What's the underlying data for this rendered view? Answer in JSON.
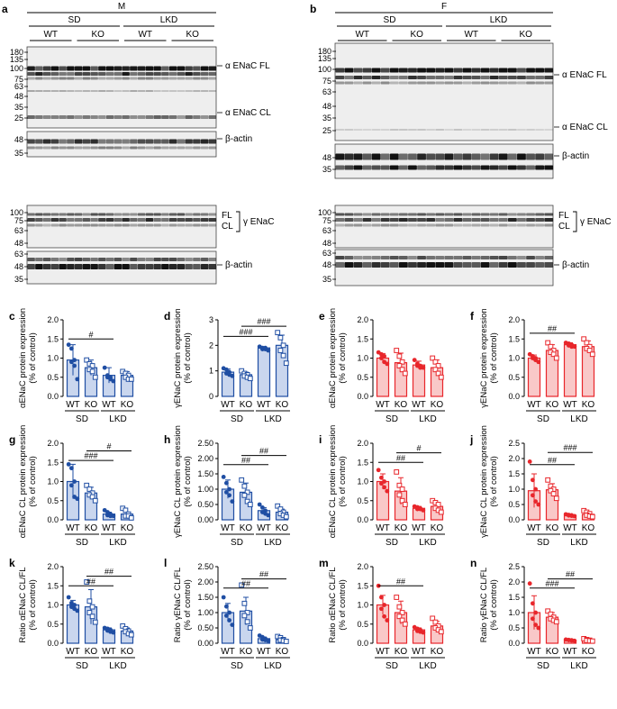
{
  "figure": {
    "panels": {
      "a": {
        "letter": "a",
        "sex": "M",
        "groups": [
          "SD",
          "LKD"
        ],
        "genotypes": [
          "WT",
          "KO",
          "WT",
          "KO"
        ],
        "markers_top": [
          "180",
          "135",
          "100",
          "75",
          "63",
          "48",
          "35",
          "25"
        ],
        "markers_actin_top": [
          "48",
          "35"
        ],
        "labels_top": [
          "α ENaC FL",
          "α ENaC CL",
          "β-actin"
        ],
        "markers_bottom": [
          "100",
          "75",
          "63",
          "48"
        ],
        "markers_actin_bottom": [
          "63",
          "48",
          "35"
        ],
        "labels_bottom": {
          "fl": "FL",
          "cl": "CL",
          "protein": "γ ENaC",
          "actin": "β-actin"
        }
      },
      "b": {
        "letter": "b",
        "sex": "F",
        "groups": [
          "SD",
          "LKD"
        ],
        "genotypes": [
          "WT",
          "KO",
          "WT",
          "KO"
        ],
        "markers_top": [
          "180",
          "135",
          "100",
          "75",
          "63",
          "48",
          "35",
          "25"
        ],
        "markers_actin_top": [
          "48",
          "35"
        ],
        "labels_top": [
          "α ENaC FL",
          "α ENaC CL",
          "β-actin"
        ],
        "markers_bottom": [
          "100",
          "75",
          "63",
          "48"
        ],
        "markers_actin_bottom": [
          "63",
          "48",
          "35"
        ],
        "labels_bottom": {
          "fl": "FL",
          "cl": "CL",
          "protein": "γ ENaC",
          "actin": "β-actin"
        }
      }
    }
  },
  "colors": {
    "male": "#1f4ea3",
    "female": "#e8262b",
    "male_fill": "#c9d6ee",
    "female_fill": "#f9c8c8"
  },
  "chart_data": [
    {
      "id": "c",
      "type": "bar",
      "sex": "M",
      "ylabel": "αENaC protein expression\n(% of control)",
      "ylim": [
        0,
        2.0
      ],
      "yticks": [
        "0.0",
        "0.5",
        "1.0",
        "1.5",
        "2.0"
      ],
      "categories": [
        "WT",
        "KO",
        "WT",
        "KO"
      ],
      "groups": [
        "SD",
        "LKD"
      ],
      "values": [
        0.95,
        0.75,
        0.55,
        0.55
      ],
      "errors": [
        0.4,
        0.2,
        0.2,
        0.1
      ],
      "points": [
        [
          1.35,
          1.25,
          0.95,
          0.9,
          0.8,
          0.45
        ],
        [
          0.95,
          0.85,
          0.8,
          0.7,
          0.65,
          0.5
        ],
        [
          0.75,
          0.55,
          0.5,
          0.5,
          0.45,
          0.4
        ],
        [
          0.65,
          0.6,
          0.55,
          0.5,
          0.45,
          0.45
        ]
      ],
      "sig": [
        {
          "label": "#",
          "from": 0,
          "to": 2,
          "y": 1.5
        }
      ]
    },
    {
      "id": "d",
      "type": "bar",
      "sex": "M",
      "ylabel": "γENaC protein expression\n(% of control)",
      "ylim": [
        0,
        3
      ],
      "yticks": [
        "0",
        "1",
        "2",
        "3"
      ],
      "categories": [
        "WT",
        "KO",
        "WT",
        "KO"
      ],
      "groups": [
        "SD",
        "LKD"
      ],
      "values": [
        0.95,
        0.85,
        1.9,
        2.0
      ],
      "errors": [
        0.12,
        0.1,
        0.05,
        0.4
      ],
      "points": [
        [
          1.1,
          1.05,
          0.95,
          0.9,
          0.85,
          0.8
        ],
        [
          1.0,
          0.9,
          0.85,
          0.8,
          0.75,
          0.7
        ],
        [
          1.95,
          1.9,
          1.9,
          1.85,
          1.85,
          1.8
        ],
        [
          2.5,
          2.3,
          2.0,
          1.8,
          1.6,
          1.3
        ]
      ],
      "sig": [
        {
          "label": "###",
          "from": 0,
          "to": 2,
          "y": 2.35
        },
        {
          "label": "###",
          "from": 1,
          "to": 3,
          "y": 2.75
        }
      ]
    },
    {
      "id": "e",
      "type": "bar",
      "sex": "F",
      "ylabel": "αENaC protein expression\n(% of control)",
      "ylim": [
        0,
        2.0
      ],
      "yticks": [
        "0.0",
        "0.5",
        "1.0",
        "1.5",
        "2.0"
      ],
      "categories": [
        "WT",
        "KO",
        "WT",
        "KO"
      ],
      "groups": [
        "SD",
        "LKD"
      ],
      "values": [
        1.0,
        0.88,
        0.82,
        0.75
      ],
      "errors": [
        0.12,
        0.25,
        0.1,
        0.2
      ],
      "points": [
        [
          1.15,
          1.1,
          1.05,
          1.0,
          0.9,
          0.85
        ],
        [
          1.2,
          1.05,
          0.9,
          0.8,
          0.7,
          0.6
        ],
        [
          0.95,
          0.85,
          0.8,
          0.8,
          0.75,
          0.75
        ],
        [
          1.0,
          0.9,
          0.8,
          0.7,
          0.6,
          0.5
        ]
      ],
      "sig": []
    },
    {
      "id": "f",
      "type": "bar",
      "sex": "F",
      "ylabel": "γENaC protein expression\n(% of control)",
      "ylim": [
        0,
        2.0
      ],
      "yticks": [
        "0.0",
        "0.5",
        "1.0",
        "1.5",
        "2.0"
      ],
      "categories": [
        "WT",
        "KO",
        "WT",
        "KO"
      ],
      "groups": [
        "SD",
        "LKD"
      ],
      "values": [
        1.0,
        1.2,
        1.35,
        1.3
      ],
      "errors": [
        0.08,
        0.15,
        0.05,
        0.15
      ],
      "points": [
        [
          1.1,
          1.05,
          1.0,
          1.0,
          0.95,
          0.9
        ],
        [
          1.4,
          1.3,
          1.2,
          1.15,
          1.1,
          1.0
        ],
        [
          1.4,
          1.38,
          1.35,
          1.33,
          1.3,
          1.3
        ],
        [
          1.5,
          1.4,
          1.3,
          1.25,
          1.2,
          1.1
        ]
      ],
      "sig": [
        {
          "label": "##",
          "from": 0,
          "to": 2,
          "y": 1.65
        }
      ]
    },
    {
      "id": "g",
      "type": "bar",
      "sex": "M",
      "ylabel": "αENaC CL protein expression\n(% of control)",
      "ylim": [
        0,
        2.0
      ],
      "yticks": [
        "0.0",
        "0.5",
        "1.0",
        "1.5",
        "2.0"
      ],
      "categories": [
        "WT",
        "KO",
        "WT",
        "KO"
      ],
      "groups": [
        "SD",
        "LKD"
      ],
      "values": [
        1.0,
        0.7,
        0.15,
        0.15
      ],
      "errors": [
        0.45,
        0.15,
        0.05,
        0.05
      ],
      "points": [
        [
          1.45,
          1.35,
          1.0,
          0.9,
          0.6,
          0.55
        ],
        [
          0.9,
          0.8,
          0.7,
          0.65,
          0.6,
          0.5
        ],
        [
          0.25,
          0.2,
          0.15,
          0.12,
          0.1,
          0.1
        ],
        [
          0.3,
          0.25,
          0.15,
          0.1,
          0.1,
          0.05
        ]
      ],
      "sig": [
        {
          "label": "###",
          "from": 0,
          "to": 2,
          "y": 1.55
        },
        {
          "label": "#",
          "from": 1,
          "to": 3,
          "y": 1.8
        }
      ]
    },
    {
      "id": "h",
      "type": "bar",
      "sex": "M",
      "ylabel": "γENaC CL protein expression\n(% of control)",
      "ylim": [
        0,
        2.5
      ],
      "yticks": [
        "0.00",
        "0.50",
        "1.00",
        "1.50",
        "2.00",
        "2.50"
      ],
      "categories": [
        "WT",
        "KO",
        "WT",
        "KO"
      ],
      "groups": [
        "SD",
        "LKD"
      ],
      "values": [
        1.0,
        0.9,
        0.3,
        0.25
      ],
      "errors": [
        0.3,
        0.3,
        0.1,
        0.1
      ],
      "points": [
        [
          1.4,
          1.2,
          1.0,
          0.9,
          0.8,
          0.6
        ],
        [
          1.3,
          1.1,
          0.9,
          0.8,
          0.6,
          0.5
        ],
        [
          0.5,
          0.4,
          0.3,
          0.25,
          0.2,
          0.15
        ],
        [
          0.45,
          0.35,
          0.25,
          0.2,
          0.15,
          0.1
        ]
      ],
      "sig": [
        {
          "label": "##",
          "from": 0,
          "to": 2,
          "y": 1.8
        },
        {
          "label": "##",
          "from": 1,
          "to": 3,
          "y": 2.1
        }
      ]
    },
    {
      "id": "i",
      "type": "bar",
      "sex": "F",
      "ylabel": "αENaC CL protein expression\n(% of control)",
      "ylim": [
        0,
        2.0
      ],
      "yticks": [
        "0.0",
        "0.5",
        "1.0",
        "1.5",
        "2.0"
      ],
      "categories": [
        "WT",
        "KO",
        "WT",
        "KO"
      ],
      "groups": [
        "SD",
        "LKD"
      ],
      "values": [
        1.0,
        0.75,
        0.3,
        0.35
      ],
      "errors": [
        0.2,
        0.35,
        0.05,
        0.1
      ],
      "points": [
        [
          1.3,
          1.1,
          1.0,
          0.95,
          0.85,
          0.75
        ],
        [
          1.25,
          0.9,
          0.8,
          0.65,
          0.5,
          0.4
        ],
        [
          0.35,
          0.33,
          0.3,
          0.28,
          0.28,
          0.25
        ],
        [
          0.5,
          0.45,
          0.4,
          0.3,
          0.25,
          0.2
        ]
      ],
      "sig": [
        {
          "label": "##",
          "from": 0,
          "to": 2,
          "y": 1.5
        },
        {
          "label": "#",
          "from": 1,
          "to": 3,
          "y": 1.75
        }
      ]
    },
    {
      "id": "j",
      "type": "bar",
      "sex": "F",
      "ylabel": "γENaC CL protein expression\n(% of control)",
      "ylim": [
        0,
        2.5
      ],
      "yticks": [
        "0.0",
        "0.5",
        "1.0",
        "1.5",
        "2.0",
        "2.5"
      ],
      "categories": [
        "WT",
        "KO",
        "WT",
        "KO"
      ],
      "groups": [
        "SD",
        "LKD"
      ],
      "values": [
        0.95,
        0.98,
        0.15,
        0.18
      ],
      "errors": [
        0.55,
        0.2,
        0.03,
        0.08
      ],
      "points": [
        [
          1.9,
          1.3,
          1.0,
          0.8,
          0.6,
          0.5
        ],
        [
          1.3,
          1.1,
          1.0,
          0.95,
          0.85,
          0.7
        ],
        [
          0.18,
          0.16,
          0.15,
          0.14,
          0.13,
          0.12
        ],
        [
          0.3,
          0.25,
          0.2,
          0.15,
          0.12,
          0.1
        ]
      ],
      "sig": [
        {
          "label": "##",
          "from": 0,
          "to": 2,
          "y": 1.8
        },
        {
          "label": "###",
          "from": 1,
          "to": 3,
          "y": 2.2
        }
      ]
    },
    {
      "id": "k",
      "type": "bar",
      "sex": "M",
      "ylabel": "Ratio αENaC CL/FL\n(% of control)",
      "ylim": [
        0,
        2.0
      ],
      "yticks": [
        "0.0",
        "0.5",
        "1.0",
        "1.5",
        "2.0"
      ],
      "categories": [
        "WT",
        "KO",
        "WT",
        "KO"
      ],
      "groups": [
        "SD",
        "LKD"
      ],
      "values": [
        1.0,
        0.95,
        0.35,
        0.32
      ],
      "errors": [
        0.12,
        0.45,
        0.05,
        0.08
      ],
      "points": [
        [
          1.2,
          1.05,
          1.0,
          0.95,
          0.9,
          0.85
        ],
        [
          1.6,
          1.1,
          0.95,
          0.8,
          0.7,
          0.55
        ],
        [
          0.4,
          0.38,
          0.35,
          0.33,
          0.3,
          0.28
        ],
        [
          0.45,
          0.38,
          0.32,
          0.3,
          0.25,
          0.22
        ]
      ],
      "sig": [
        {
          "label": "##",
          "from": 0,
          "to": 2,
          "y": 1.5
        },
        {
          "label": "##",
          "from": 1,
          "to": 3,
          "y": 1.75
        }
      ]
    },
    {
      "id": "l",
      "type": "bar",
      "sex": "M",
      "ylabel": "Ratio γENaC CL/FL\n(% of control)",
      "ylim": [
        0,
        2.5
      ],
      "yticks": [
        "0.00",
        "0.50",
        "1.00",
        "1.50",
        "2.00",
        "2.50"
      ],
      "categories": [
        "WT",
        "KO",
        "WT",
        "KO"
      ],
      "groups": [
        "SD",
        "LKD"
      ],
      "values": [
        1.0,
        1.05,
        0.15,
        0.12
      ],
      "errors": [
        0.3,
        0.45,
        0.05,
        0.06
      ],
      "points": [
        [
          1.5,
          1.2,
          1.0,
          0.9,
          0.75,
          0.6
        ],
        [
          1.9,
          1.3,
          1.0,
          0.9,
          0.7,
          0.5
        ],
        [
          0.25,
          0.2,
          0.15,
          0.12,
          0.1,
          0.08
        ],
        [
          0.22,
          0.18,
          0.12,
          0.1,
          0.08,
          0.06
        ]
      ],
      "sig": [
        {
          "label": "##",
          "from": 0,
          "to": 2,
          "y": 1.8
        },
        {
          "label": "##",
          "from": 1,
          "to": 3,
          "y": 2.1
        }
      ]
    },
    {
      "id": "m",
      "type": "bar",
      "sex": "F",
      "ylabel": "Ratio αENaC CL/FL\n(% of control)",
      "ylim": [
        0,
        2.0
      ],
      "yticks": [
        "0.0",
        "0.5",
        "1.0",
        "1.5",
        "2.0"
      ],
      "categories": [
        "WT",
        "KO",
        "WT",
        "KO"
      ],
      "groups": [
        "SD",
        "LKD"
      ],
      "values": [
        1.0,
        0.8,
        0.35,
        0.45
      ],
      "errors": [
        0.25,
        0.3,
        0.05,
        0.12
      ],
      "points": [
        [
          1.5,
          1.2,
          1.0,
          0.9,
          0.7,
          0.6
        ],
        [
          1.2,
          0.95,
          0.8,
          0.7,
          0.6,
          0.5
        ],
        [
          0.42,
          0.38,
          0.35,
          0.32,
          0.3,
          0.28
        ],
        [
          0.65,
          0.55,
          0.45,
          0.4,
          0.35,
          0.3
        ]
      ],
      "sig": [
        {
          "label": "##",
          "from": 0,
          "to": 2,
          "y": 1.5
        }
      ]
    },
    {
      "id": "n",
      "type": "bar",
      "sex": "F",
      "ylabel": "Ratio γENaC CL/FL\n(% of control)",
      "ylim": [
        0,
        2.5
      ],
      "yticks": [
        "0.0",
        "0.5",
        "1.0",
        "1.5",
        "2.0",
        "2.5"
      ],
      "categories": [
        "WT",
        "KO",
        "WT",
        "KO"
      ],
      "groups": [
        "SD",
        "LKD"
      ],
      "values": [
        1.0,
        0.85,
        0.1,
        0.1
      ],
      "errors": [
        0.55,
        0.15,
        0.02,
        0.03
      ],
      "points": [
        [
          1.95,
          1.3,
          1.0,
          0.8,
          0.6,
          0.5
        ],
        [
          1.05,
          0.95,
          0.85,
          0.8,
          0.75,
          0.7
        ],
        [
          0.12,
          0.11,
          0.1,
          0.1,
          0.09,
          0.08
        ],
        [
          0.15,
          0.12,
          0.1,
          0.09,
          0.08,
          0.07
        ]
      ],
      "sig": [
        {
          "label": "###",
          "from": 0,
          "to": 2,
          "y": 1.8
        },
        {
          "label": "##",
          "from": 1,
          "to": 3,
          "y": 2.1
        }
      ]
    }
  ]
}
